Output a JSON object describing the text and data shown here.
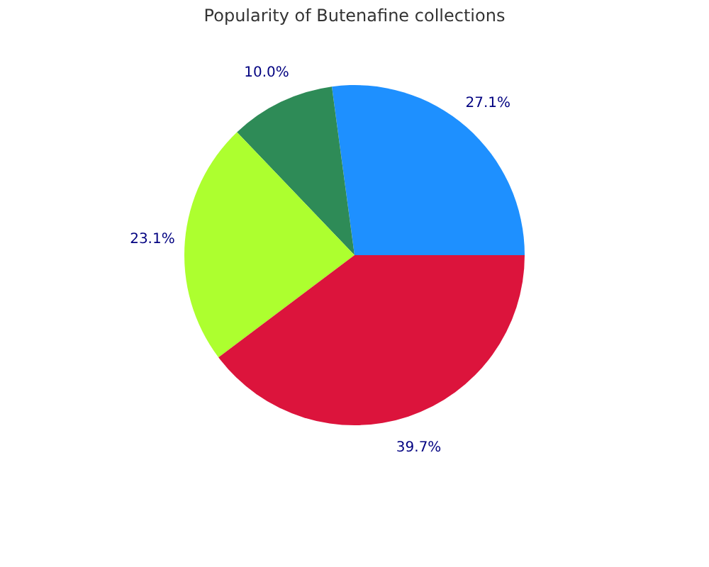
{
  "chart_data": {
    "type": "pie",
    "title": "Popularity of Butenafine collections",
    "categories": [
      null,
      null,
      null,
      null
    ],
    "values": [
      27.1,
      10.0,
      23.1,
      39.7
    ],
    "value_labels": [
      "27.1%",
      "10.0%",
      "23.1%",
      "39.7%"
    ],
    "colors": [
      "#1e90ff",
      "#2e8b57",
      "#adff2f",
      "#dc143c"
    ]
  }
}
